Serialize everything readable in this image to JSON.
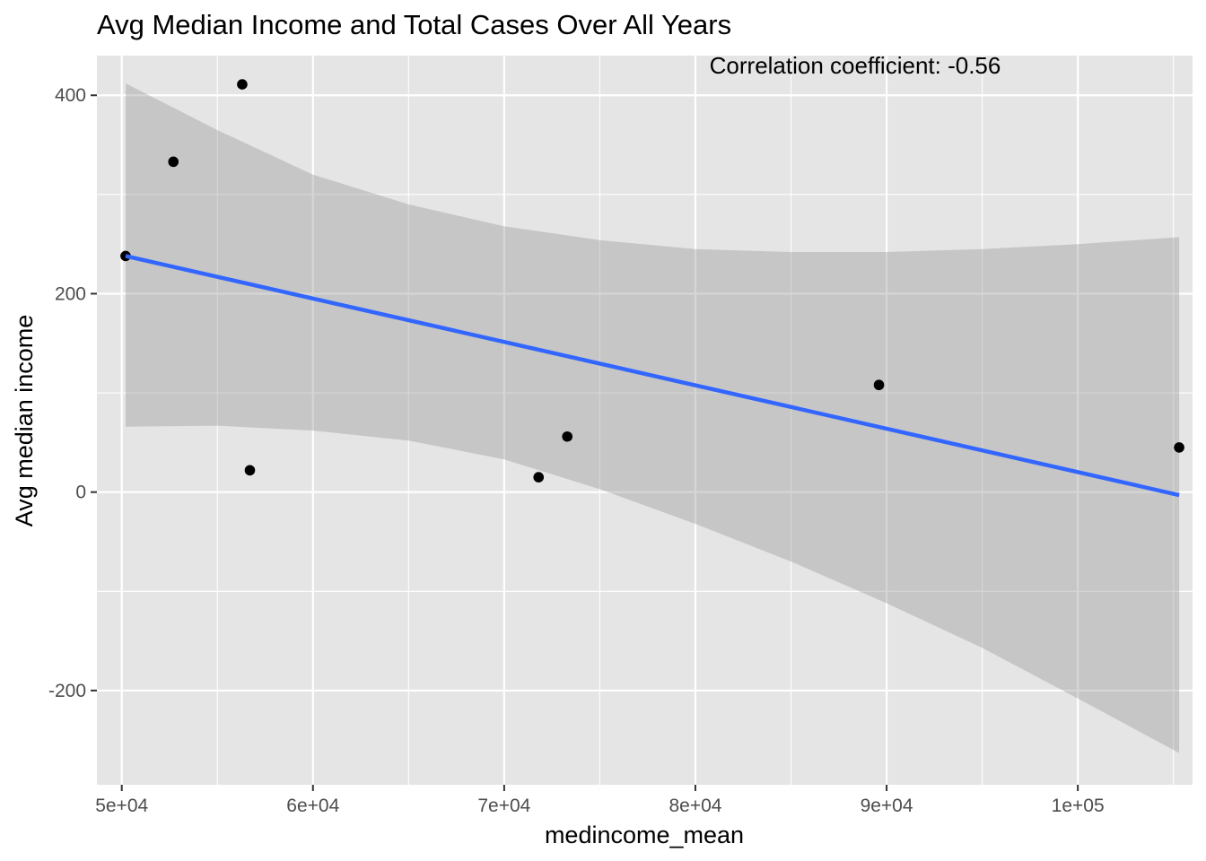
{
  "chart_data": {
    "type": "scatter",
    "title": "Avg Median Income and Total Cases Over All Years",
    "xlabel": "medincome_mean",
    "ylabel": "Avg median income",
    "xlim": [
      48700,
      106000
    ],
    "ylim": [
      -295,
      440
    ],
    "x_ticks": [
      50000,
      60000,
      70000,
      80000,
      90000,
      100000
    ],
    "x_tick_labels": [
      "5e+04",
      "6e+04",
      "7e+04",
      "8e+04",
      "9e+04",
      "1e+05"
    ],
    "y_ticks": [
      -200,
      0,
      200,
      400
    ],
    "y_tick_labels": [
      "-200",
      "0",
      "200",
      "400"
    ],
    "grid": true,
    "annotation": "Correlation coefficient:  -0.56",
    "points": [
      {
        "x": 50200,
        "y": 238
      },
      {
        "x": 52700,
        "y": 333
      },
      {
        "x": 56300,
        "y": 411
      },
      {
        "x": 56700,
        "y": 22
      },
      {
        "x": 71800,
        "y": 15
      },
      {
        "x": 73300,
        "y": 56
      },
      {
        "x": 89600,
        "y": 108
      },
      {
        "x": 105300,
        "y": 45
      }
    ],
    "trend_line": {
      "x": [
        50200,
        105300
      ],
      "y": [
        238,
        -3
      ],
      "color": "#3366FF"
    },
    "confidence_band": {
      "x": [
        50200,
        55000,
        60000,
        65000,
        70000,
        75000,
        80000,
        85000,
        90000,
        95000,
        100000,
        105300
      ],
      "upper": [
        412,
        365,
        320,
        290,
        268,
        254,
        245,
        242,
        242,
        245,
        250,
        257
      ],
      "lower": [
        66,
        67,
        62,
        52,
        33,
        3,
        -32,
        -70,
        -112,
        -157,
        -208,
        -263
      ]
    },
    "colors": {
      "panel": "#E5E5E5",
      "grid": "#FFFFFF",
      "point": "#000000",
      "band": "#999999"
    }
  }
}
